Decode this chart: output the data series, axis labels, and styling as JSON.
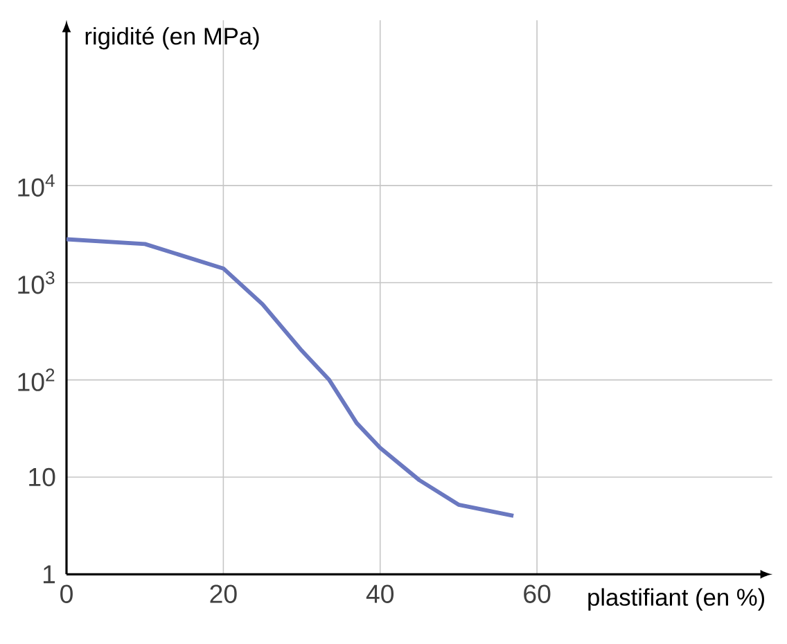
{
  "chart_data": {
    "type": "line",
    "xlabel": "plastifiant (en %)",
    "ylabel": "rigidité (en MPa)",
    "x": [
      0,
      10,
      20,
      25,
      30,
      33.5,
      37,
      40,
      45,
      50,
      57
    ],
    "series": [
      {
        "color": "#6a78c0",
        "values": [
          2800,
          2500,
          1400,
          600,
          200,
          100,
          36,
          20,
          9.3,
          5.2,
          4
        ]
      }
    ],
    "xlim": [
      0,
      90
    ],
    "ylim": [
      1,
      500000
    ],
    "log": "y",
    "xticks": [
      0,
      20,
      40,
      60
    ],
    "yticks": [
      1,
      10,
      {
        "value": 100,
        "label": "10$^{2}$"
      },
      {
        "value": 1000,
        "label": "10$^{3}$"
      },
      {
        "value": 10000,
        "label": "10$^{4}$"
      }
    ],
    "grid": true,
    "marker": "none",
    "line_style": "solid"
  }
}
